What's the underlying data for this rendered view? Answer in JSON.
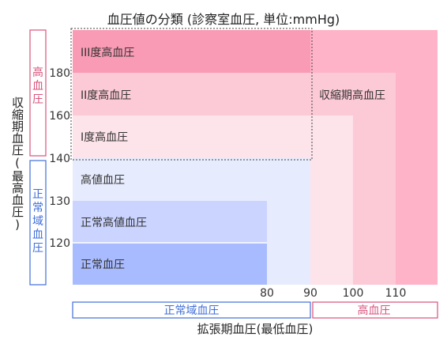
{
  "chart_data": {
    "type": "heatmap",
    "title": "血圧値の分類 (診察室血圧, 単位:mmHg)",
    "xlabel": "拡張期血圧(最低血圧)",
    "ylabel": "収縮期血圧(最高血圧)",
    "x_ticks": [
      80,
      90,
      100,
      110
    ],
    "y_ticks": [
      120,
      130,
      140,
      160,
      180
    ],
    "regions": [
      {
        "name": "収縮期高血圧",
        "x_from": 90,
        "y_from": 140,
        "color": "#ffb3c8"
      },
      {
        "name": "III度高血圧",
        "x_from": 110,
        "y_from": 180,
        "color": "#f99bb5"
      },
      {
        "name": "II度高血圧",
        "x_from": 100,
        "y_from": 160,
        "color": "#fccad6"
      },
      {
        "name": "I度高血圧",
        "x_from": 90,
        "y_from": 140,
        "color": "#fde3ea"
      },
      {
        "name": "高値血圧",
        "x_from": 80,
        "y_from": 130,
        "color": "#e6ebfd"
      },
      {
        "name": "正常高値血圧",
        "x_from": 0,
        "y_from": 120,
        "color": "#cad4ff"
      },
      {
        "name": "正常血圧",
        "x_from": 0,
        "y_from": 0,
        "color": "#a9bbff"
      }
    ],
    "dotted_box": {
      "x_max": 90,
      "y_min": 140
    },
    "x_groups": [
      {
        "label": "正常域血圧",
        "color": "#3f6ed8"
      },
      {
        "label": "高血圧",
        "color": "#d9527c"
      }
    ],
    "y_groups": [
      {
        "label": "高血圧",
        "color": "#d9527c"
      },
      {
        "label": "正常域血圧",
        "color": "#3f6ed8"
      }
    ]
  }
}
